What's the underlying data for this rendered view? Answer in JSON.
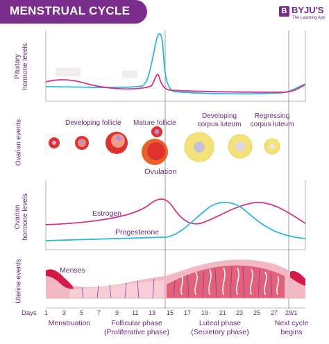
{
  "header": {
    "title": "MENSTRUAL CYCLE"
  },
  "logo": {
    "name": "BYJU'S",
    "tagline": "The Learning App",
    "mark": "B"
  },
  "panels": {
    "pituitary": {
      "axis_label_1": "Pituitary",
      "axis_label_2": "hormone levels"
    },
    "ovarian_events": {
      "axis_label": "Ovarian events"
    },
    "ovarian_hormones": {
      "axis_label_1": "Ovarian",
      "axis_label_2": "hormone levels"
    },
    "uterine": {
      "axis_label": "Uterine events"
    }
  },
  "ovary": {
    "developing_follicle": "Developing follicle",
    "mature_follicle": "Mature follicle",
    "corpus_luteum_1": "Developing",
    "corpus_luteum_2": "corpus luteum",
    "regressing_1": "Regressing",
    "regressing_2": "corpus luteum",
    "ovulation": "Ovulation"
  },
  "hormones": {
    "estrogen": "Estrogen",
    "progesterone": "Progesterone"
  },
  "uterus": {
    "menses": "Menses"
  },
  "days": {
    "label": "Days",
    "ticks": [
      "1",
      "3",
      "5",
      "7",
      "9",
      "11",
      "13",
      "15",
      "17",
      "19",
      "21",
      "23",
      "25",
      "27",
      "29/1"
    ]
  },
  "phases": {
    "menstruation": "Menstruation",
    "follicular_1": "Follicular phase",
    "follicular_2": "(Proliferative phase)",
    "luteal_1": "Luteal phase",
    "luteal_2": "(Secretory phase)",
    "next_1": "Next cycle",
    "next_2": "begins"
  },
  "colors": {
    "brand": "#7b2d8e",
    "text": "#6b2b7a",
    "lh_curve": "#2bb7e2",
    "fsh_curve": "#d63384",
    "follicle": "#e0322c",
    "corpus_luteum": "#f3e27a"
  }
}
